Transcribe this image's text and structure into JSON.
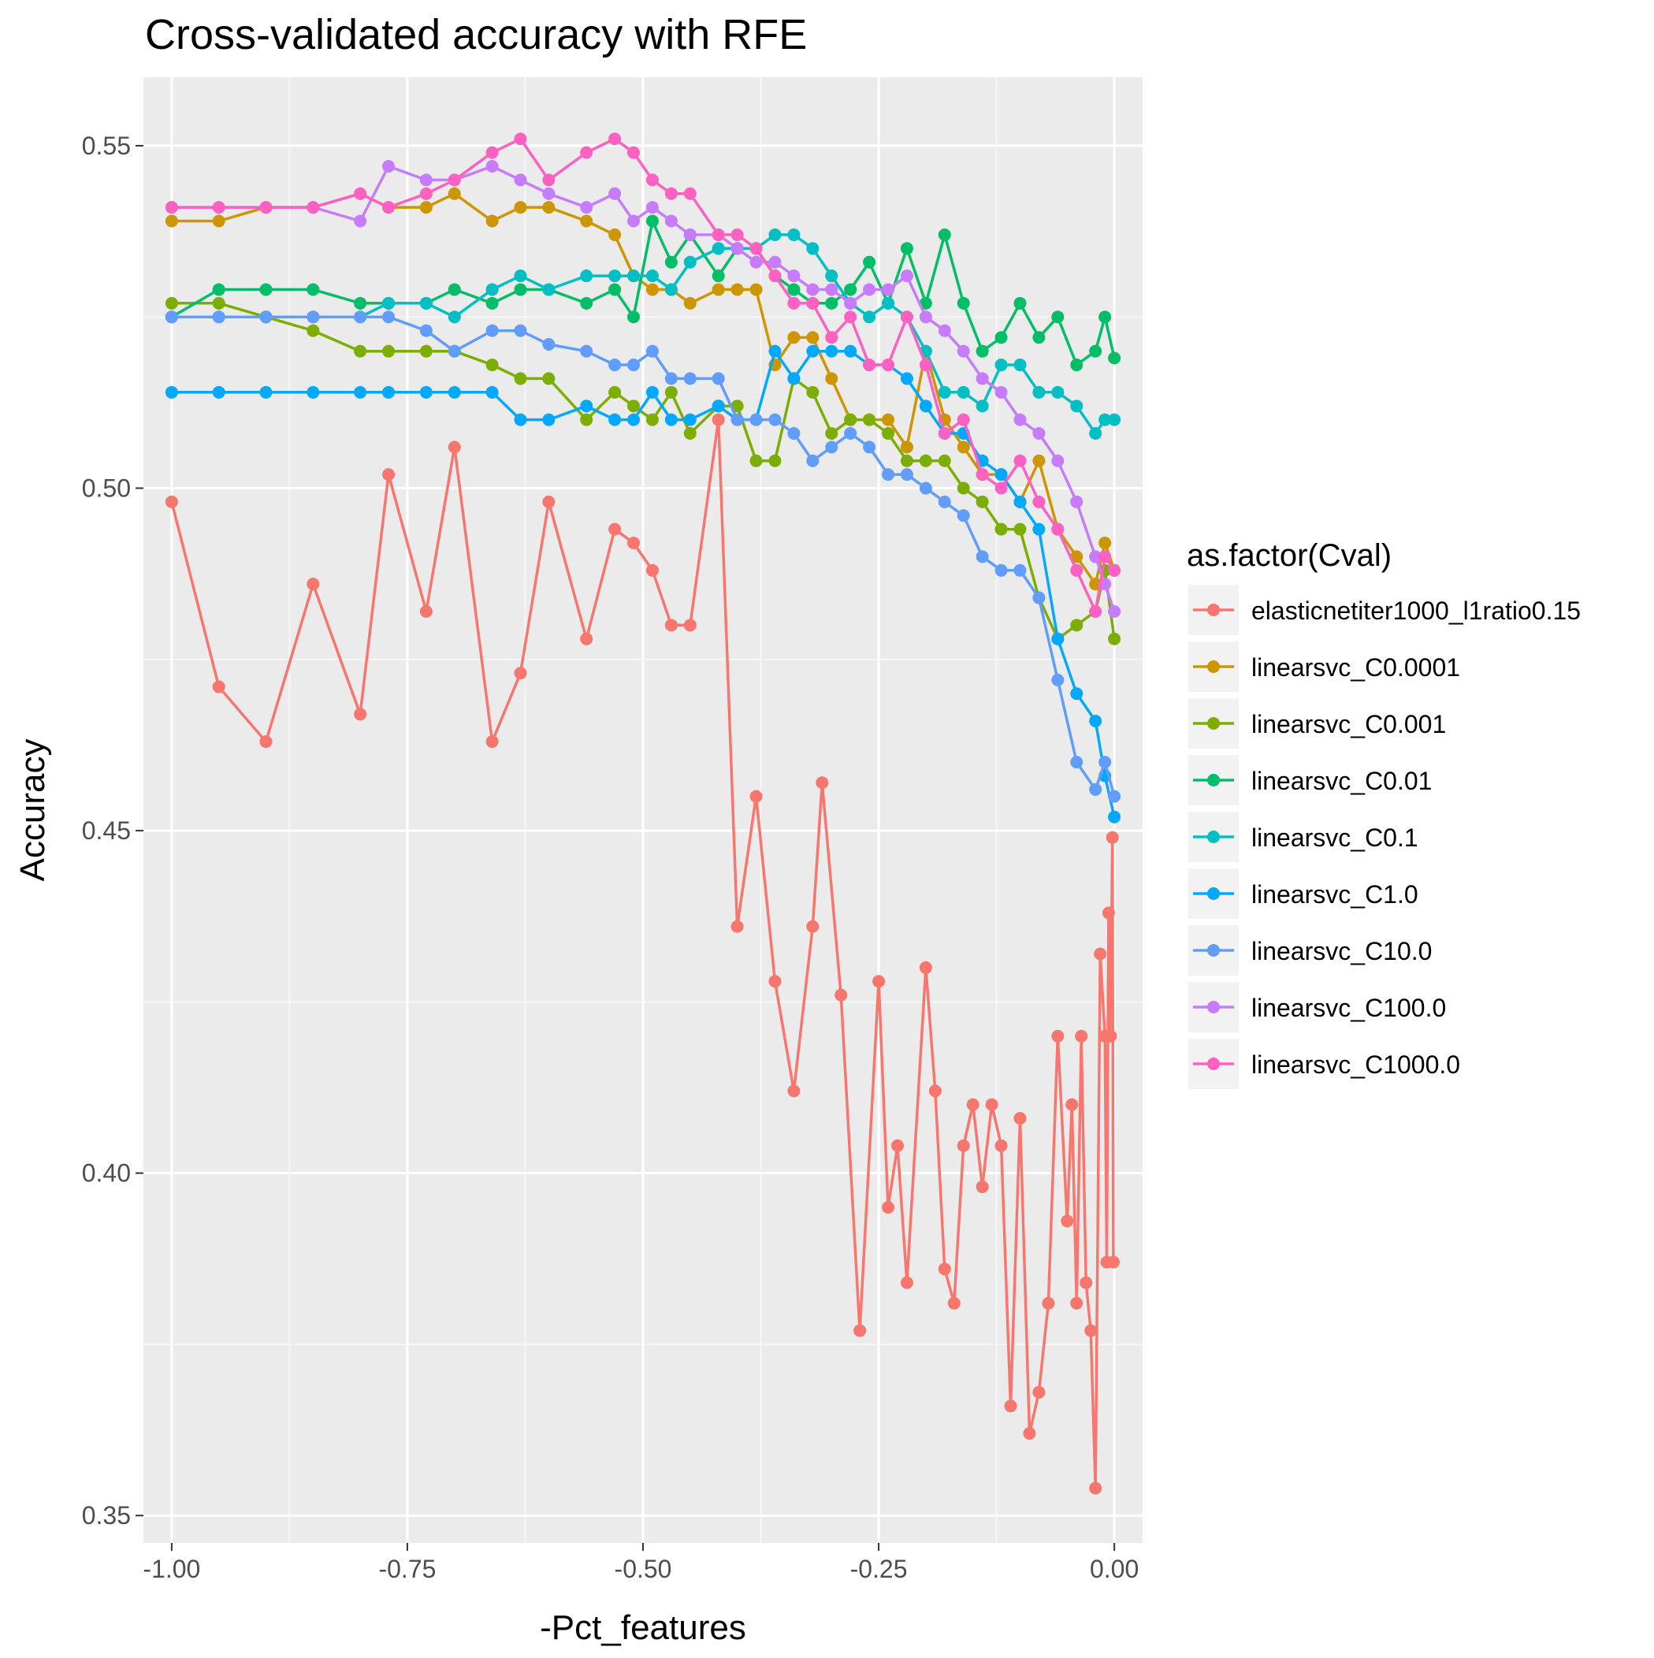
{
  "chart_data": {
    "type": "line",
    "title": "Cross-validated accuracy with RFE",
    "xlabel": "-Pct_features",
    "ylabel": "Accuracy",
    "xlim": [
      -1.03,
      0.03
    ],
    "ylim": [
      0.346,
      0.56
    ],
    "x_ticks": [
      -1.0,
      -0.75,
      -0.5,
      -0.25,
      0.0
    ],
    "x_tick_labels": [
      "-1.00",
      "-0.75",
      "-0.50",
      "-0.25",
      "0.00"
    ],
    "y_ticks": [
      0.35,
      0.4,
      0.45,
      0.5,
      0.55
    ],
    "y_tick_labels": [
      "0.35",
      "0.40",
      "0.45",
      "0.50",
      "0.55"
    ],
    "grid": true,
    "background": "#EBEBEB",
    "legend": {
      "title": "as.factor(Cval)",
      "position": "right"
    },
    "series": [
      {
        "name": "elasticnetiter1000_l1ratio0.15",
        "color": "#F8766D",
        "x": [
          -1.0,
          -0.95,
          -0.9,
          -0.85,
          -0.8,
          -0.77,
          -0.73,
          -0.7,
          -0.66,
          -0.63,
          -0.6,
          -0.56,
          -0.53,
          -0.51,
          -0.49,
          -0.47,
          -0.45,
          -0.42,
          -0.4,
          -0.38,
          -0.36,
          -0.34,
          -0.32,
          -0.31,
          -0.29,
          -0.27,
          -0.25,
          -0.24,
          -0.23,
          -0.22,
          -0.2,
          -0.19,
          -0.18,
          -0.17,
          -0.16,
          -0.15,
          -0.14,
          -0.13,
          -0.12,
          -0.11,
          -0.1,
          -0.09,
          -0.08,
          -0.07,
          -0.06,
          -0.05,
          -0.045,
          -0.04,
          -0.035,
          -0.03,
          -0.025,
          -0.02,
          -0.015,
          -0.01,
          -0.008,
          -0.006,
          -0.004,
          -0.002,
          -0.001
        ],
        "y": [
          0.498,
          0.471,
          0.463,
          0.486,
          0.467,
          0.502,
          0.482,
          0.506,
          0.463,
          0.473,
          0.498,
          0.478,
          0.494,
          0.492,
          0.488,
          0.48,
          0.48,
          0.51,
          0.436,
          0.455,
          0.428,
          0.412,
          0.436,
          0.457,
          0.426,
          0.377,
          0.428,
          0.395,
          0.404,
          0.384,
          0.43,
          0.412,
          0.386,
          0.381,
          0.404,
          0.41,
          0.398,
          0.41,
          0.404,
          0.366,
          0.408,
          0.362,
          0.368,
          0.381,
          0.42,
          0.393,
          0.41,
          0.381,
          0.42,
          0.384,
          0.377,
          0.354,
          0.432,
          0.42,
          0.387,
          0.438,
          0.42,
          0.449,
          0.387
        ]
      },
      {
        "name": "linearsvc_C0.0001",
        "color": "#CD9600",
        "x": [
          -1.0,
          -0.95,
          -0.9,
          -0.85,
          -0.8,
          -0.77,
          -0.73,
          -0.7,
          -0.66,
          -0.63,
          -0.6,
          -0.56,
          -0.53,
          -0.51,
          -0.49,
          -0.47,
          -0.45,
          -0.42,
          -0.4,
          -0.38,
          -0.36,
          -0.34,
          -0.32,
          -0.3,
          -0.28,
          -0.26,
          -0.24,
          -0.22,
          -0.2,
          -0.18,
          -0.16,
          -0.14,
          -0.12,
          -0.1,
          -0.08,
          -0.06,
          -0.04,
          -0.02,
          -0.01,
          0.0
        ],
        "y": [
          0.539,
          0.539,
          0.541,
          0.541,
          0.543,
          0.541,
          0.541,
          0.543,
          0.539,
          0.541,
          0.541,
          0.539,
          0.537,
          0.531,
          0.529,
          0.529,
          0.527,
          0.529,
          0.529,
          0.529,
          0.518,
          0.522,
          0.522,
          0.516,
          0.51,
          0.51,
          0.51,
          0.506,
          0.52,
          0.51,
          0.506,
          0.502,
          0.502,
          0.498,
          0.504,
          0.494,
          0.49,
          0.486,
          0.492,
          0.488
        ]
      },
      {
        "name": "linearsvc_C0.001",
        "color": "#7CAE00",
        "x": [
          -1.0,
          -0.95,
          -0.9,
          -0.85,
          -0.8,
          -0.77,
          -0.73,
          -0.7,
          -0.66,
          -0.63,
          -0.6,
          -0.56,
          -0.53,
          -0.51,
          -0.49,
          -0.47,
          -0.45,
          -0.42,
          -0.4,
          -0.38,
          -0.36,
          -0.34,
          -0.32,
          -0.3,
          -0.28,
          -0.26,
          -0.24,
          -0.22,
          -0.2,
          -0.18,
          -0.16,
          -0.14,
          -0.12,
          -0.1,
          -0.08,
          -0.06,
          -0.04,
          -0.02,
          -0.01,
          0.0
        ],
        "y": [
          0.527,
          0.527,
          0.525,
          0.523,
          0.52,
          0.52,
          0.52,
          0.52,
          0.518,
          0.516,
          0.516,
          0.51,
          0.514,
          0.512,
          0.51,
          0.514,
          0.508,
          0.512,
          0.512,
          0.504,
          0.504,
          0.516,
          0.514,
          0.508,
          0.51,
          0.51,
          0.508,
          0.504,
          0.504,
          0.504,
          0.5,
          0.498,
          0.494,
          0.494,
          0.484,
          0.478,
          0.48,
          0.482,
          0.488,
          0.478
        ]
      },
      {
        "name": "linearsvc_C0.01",
        "color": "#00BE67",
        "x": [
          -1.0,
          -0.95,
          -0.9,
          -0.85,
          -0.8,
          -0.77,
          -0.73,
          -0.7,
          -0.66,
          -0.63,
          -0.6,
          -0.56,
          -0.53,
          -0.51,
          -0.49,
          -0.47,
          -0.45,
          -0.42,
          -0.4,
          -0.38,
          -0.36,
          -0.34,
          -0.32,
          -0.3,
          -0.28,
          -0.26,
          -0.24,
          -0.22,
          -0.2,
          -0.18,
          -0.16,
          -0.14,
          -0.12,
          -0.1,
          -0.08,
          -0.06,
          -0.04,
          -0.02,
          -0.01,
          0.0
        ],
        "y": [
          0.525,
          0.529,
          0.529,
          0.529,
          0.527,
          0.527,
          0.527,
          0.529,
          0.527,
          0.529,
          0.529,
          0.527,
          0.529,
          0.525,
          0.539,
          0.533,
          0.537,
          0.531,
          0.535,
          0.535,
          0.531,
          0.529,
          0.527,
          0.527,
          0.529,
          0.533,
          0.527,
          0.535,
          0.527,
          0.537,
          0.527,
          0.52,
          0.522,
          0.527,
          0.522,
          0.525,
          0.518,
          0.52,
          0.525,
          0.519
        ]
      },
      {
        "name": "linearsvc_C0.1",
        "color": "#00BFC4",
        "x": [
          -1.0,
          -0.95,
          -0.9,
          -0.85,
          -0.8,
          -0.77,
          -0.73,
          -0.7,
          -0.66,
          -0.63,
          -0.6,
          -0.56,
          -0.53,
          -0.51,
          -0.49,
          -0.47,
          -0.45,
          -0.42,
          -0.4,
          -0.38,
          -0.36,
          -0.34,
          -0.32,
          -0.3,
          -0.28,
          -0.26,
          -0.24,
          -0.22,
          -0.2,
          -0.18,
          -0.16,
          -0.14,
          -0.12,
          -0.1,
          -0.08,
          -0.06,
          -0.04,
          -0.02,
          -0.01,
          0.0
        ],
        "y": [
          0.525,
          0.525,
          0.525,
          0.525,
          0.525,
          0.527,
          0.527,
          0.525,
          0.529,
          0.531,
          0.529,
          0.531,
          0.531,
          0.531,
          0.531,
          0.529,
          0.533,
          0.535,
          0.535,
          0.535,
          0.537,
          0.537,
          0.535,
          0.531,
          0.527,
          0.525,
          0.527,
          0.525,
          0.52,
          0.514,
          0.514,
          0.512,
          0.518,
          0.518,
          0.514,
          0.514,
          0.512,
          0.508,
          0.51,
          0.51
        ]
      },
      {
        "name": "linearsvc_C1.0",
        "color": "#00A9FF",
        "x": [
          -1.0,
          -0.95,
          -0.9,
          -0.85,
          -0.8,
          -0.77,
          -0.73,
          -0.7,
          -0.66,
          -0.63,
          -0.6,
          -0.56,
          -0.53,
          -0.51,
          -0.49,
          -0.47,
          -0.45,
          -0.42,
          -0.4,
          -0.38,
          -0.36,
          -0.34,
          -0.32,
          -0.3,
          -0.28,
          -0.26,
          -0.24,
          -0.22,
          -0.2,
          -0.18,
          -0.16,
          -0.14,
          -0.12,
          -0.1,
          -0.08,
          -0.06,
          -0.04,
          -0.02,
          -0.01,
          0.0
        ],
        "y": [
          0.514,
          0.514,
          0.514,
          0.514,
          0.514,
          0.514,
          0.514,
          0.514,
          0.514,
          0.51,
          0.51,
          0.512,
          0.51,
          0.51,
          0.514,
          0.51,
          0.51,
          0.512,
          0.51,
          0.51,
          0.52,
          0.516,
          0.52,
          0.52,
          0.52,
          0.518,
          0.518,
          0.516,
          0.512,
          0.508,
          0.508,
          0.504,
          0.502,
          0.498,
          0.494,
          0.478,
          0.47,
          0.466,
          0.458,
          0.452
        ]
      },
      {
        "name": "linearsvc_C10.0",
        "color": "#619CFF",
        "x": [
          -1.0,
          -0.95,
          -0.9,
          -0.85,
          -0.8,
          -0.77,
          -0.73,
          -0.7,
          -0.66,
          -0.63,
          -0.6,
          -0.56,
          -0.53,
          -0.51,
          -0.49,
          -0.47,
          -0.45,
          -0.42,
          -0.4,
          -0.38,
          -0.36,
          -0.34,
          -0.32,
          -0.3,
          -0.28,
          -0.26,
          -0.24,
          -0.22,
          -0.2,
          -0.18,
          -0.16,
          -0.14,
          -0.12,
          -0.1,
          -0.08,
          -0.06,
          -0.04,
          -0.02,
          -0.01,
          0.0
        ],
        "y": [
          0.525,
          0.525,
          0.525,
          0.525,
          0.525,
          0.525,
          0.523,
          0.52,
          0.523,
          0.523,
          0.521,
          0.52,
          0.518,
          0.518,
          0.52,
          0.516,
          0.516,
          0.516,
          0.51,
          0.51,
          0.51,
          0.508,
          0.504,
          0.506,
          0.508,
          0.506,
          0.502,
          0.502,
          0.5,
          0.498,
          0.496,
          0.49,
          0.488,
          0.488,
          0.484,
          0.472,
          0.46,
          0.456,
          0.46,
          0.455
        ]
      },
      {
        "name": "linearsvc_C100.0",
        "color": "#C77CFF",
        "x": [
          -1.0,
          -0.95,
          -0.9,
          -0.85,
          -0.8,
          -0.77,
          -0.73,
          -0.7,
          -0.66,
          -0.63,
          -0.6,
          -0.56,
          -0.53,
          -0.51,
          -0.49,
          -0.47,
          -0.45,
          -0.42,
          -0.4,
          -0.38,
          -0.36,
          -0.34,
          -0.32,
          -0.3,
          -0.28,
          -0.26,
          -0.24,
          -0.22,
          -0.2,
          -0.18,
          -0.16,
          -0.14,
          -0.12,
          -0.1,
          -0.08,
          -0.06,
          -0.04,
          -0.02,
          -0.01,
          0.0
        ],
        "y": [
          0.541,
          0.541,
          0.541,
          0.541,
          0.539,
          0.547,
          0.545,
          0.545,
          0.547,
          0.545,
          0.543,
          0.541,
          0.543,
          0.539,
          0.541,
          0.539,
          0.537,
          0.537,
          0.535,
          0.533,
          0.533,
          0.531,
          0.529,
          0.529,
          0.527,
          0.529,
          0.529,
          0.531,
          0.525,
          0.523,
          0.52,
          0.516,
          0.514,
          0.51,
          0.508,
          0.504,
          0.498,
          0.49,
          0.486,
          0.482
        ]
      },
      {
        "name": "linearsvc_C1000.0",
        "color": "#FF61C3",
        "x": [
          -1.0,
          -0.95,
          -0.9,
          -0.85,
          -0.8,
          -0.77,
          -0.73,
          -0.7,
          -0.66,
          -0.63,
          -0.6,
          -0.56,
          -0.53,
          -0.51,
          -0.49,
          -0.47,
          -0.45,
          -0.42,
          -0.4,
          -0.38,
          -0.36,
          -0.34,
          -0.32,
          -0.3,
          -0.28,
          -0.26,
          -0.24,
          -0.22,
          -0.2,
          -0.18,
          -0.16,
          -0.14,
          -0.12,
          -0.1,
          -0.08,
          -0.06,
          -0.04,
          -0.02,
          -0.01,
          0.0
        ],
        "y": [
          0.541,
          0.541,
          0.541,
          0.541,
          0.543,
          0.541,
          0.543,
          0.545,
          0.549,
          0.551,
          0.545,
          0.549,
          0.551,
          0.549,
          0.545,
          0.543,
          0.543,
          0.537,
          0.537,
          0.535,
          0.531,
          0.527,
          0.527,
          0.522,
          0.525,
          0.518,
          0.518,
          0.525,
          0.518,
          0.508,
          0.51,
          0.502,
          0.5,
          0.504,
          0.498,
          0.494,
          0.488,
          0.482,
          0.49,
          0.488
        ]
      }
    ]
  }
}
